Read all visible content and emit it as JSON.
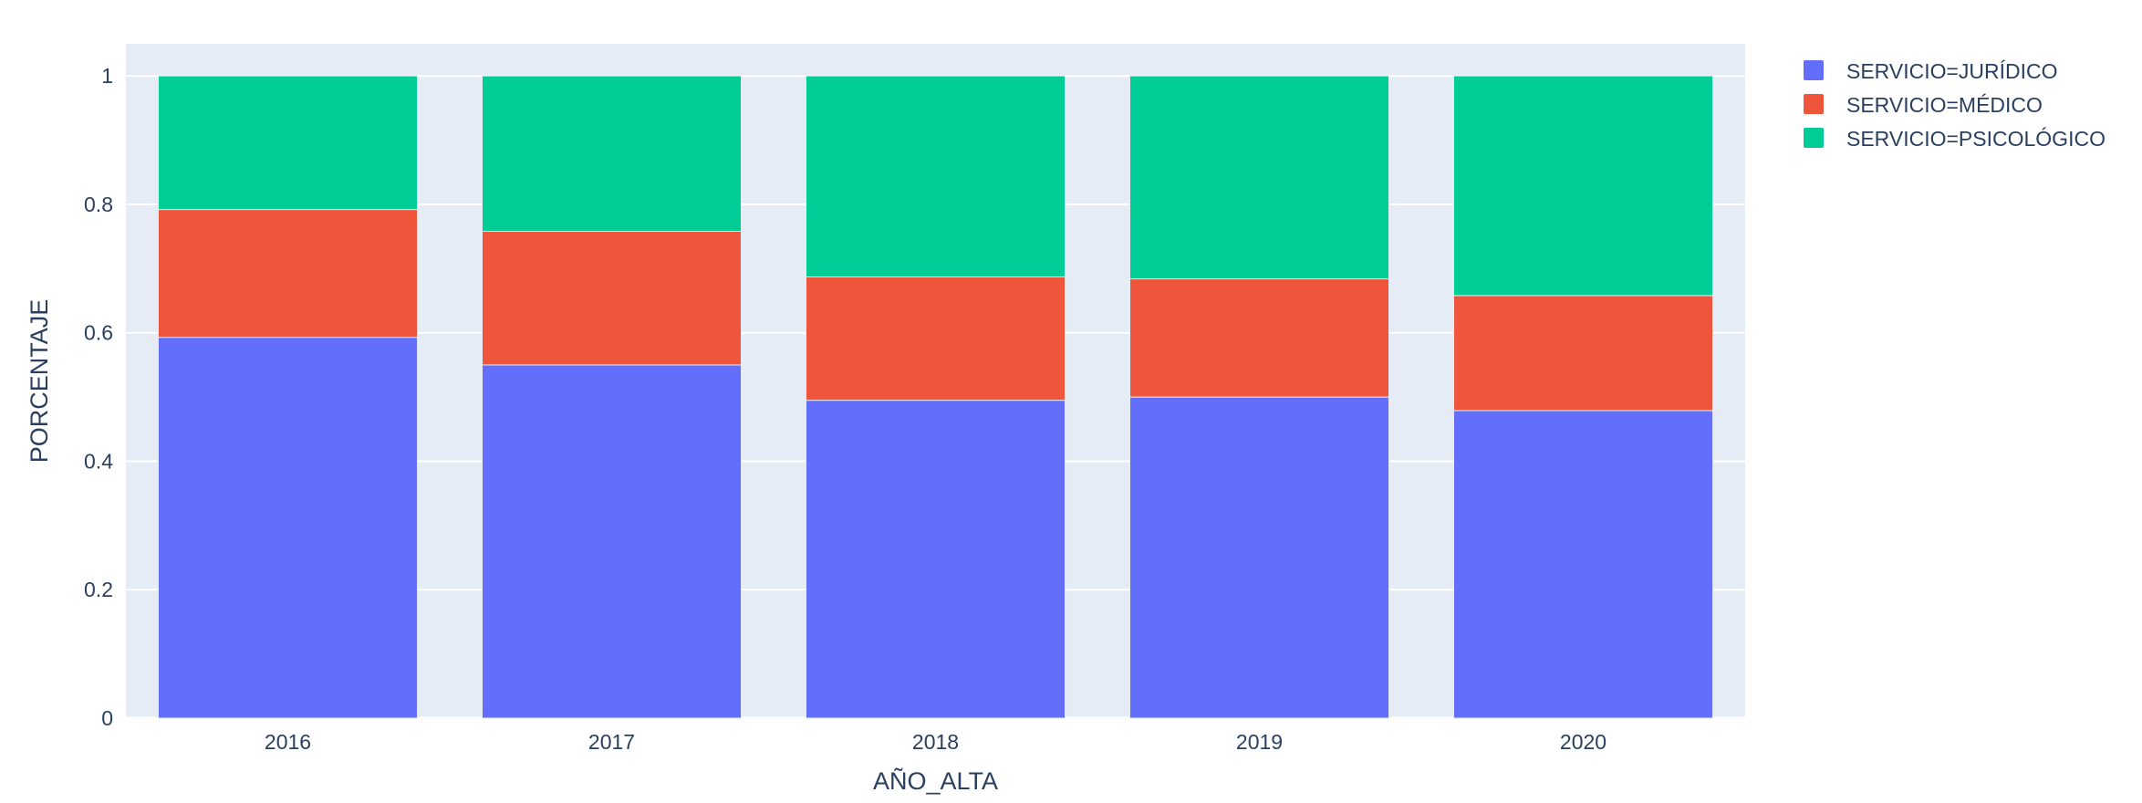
{
  "chart_data": {
    "type": "bar",
    "barmode": "stack",
    "title": "",
    "xlabel": "AÑO_ALTA",
    "ylabel": "PORCENTAJE",
    "categories": [
      "2016",
      "2017",
      "2018",
      "2019",
      "2020"
    ],
    "ylim": [
      0,
      1.05
    ],
    "yticks": [
      0,
      0.2,
      0.4,
      0.6,
      0.8,
      1
    ],
    "ytick_labels": [
      "0",
      "0.2",
      "0.4",
      "0.6",
      "0.8",
      "1"
    ],
    "grid": true,
    "legend_position": "top-right",
    "plot_background": "#e5ecf6",
    "series": [
      {
        "name": "SERVICIO=JURÍDICO",
        "color": "#636efa",
        "values": [
          0.593,
          0.55,
          0.495,
          0.5,
          0.479
        ]
      },
      {
        "name": "SERVICIO=MÉDICO",
        "color": "#ef553b",
        "values": [
          0.199,
          0.208,
          0.192,
          0.184,
          0.179
        ]
      },
      {
        "name": "SERVICIO=PSICOLÓGICO",
        "color": "#00cc96",
        "values": [
          0.208,
          0.242,
          0.313,
          0.316,
          0.342
        ]
      }
    ]
  }
}
